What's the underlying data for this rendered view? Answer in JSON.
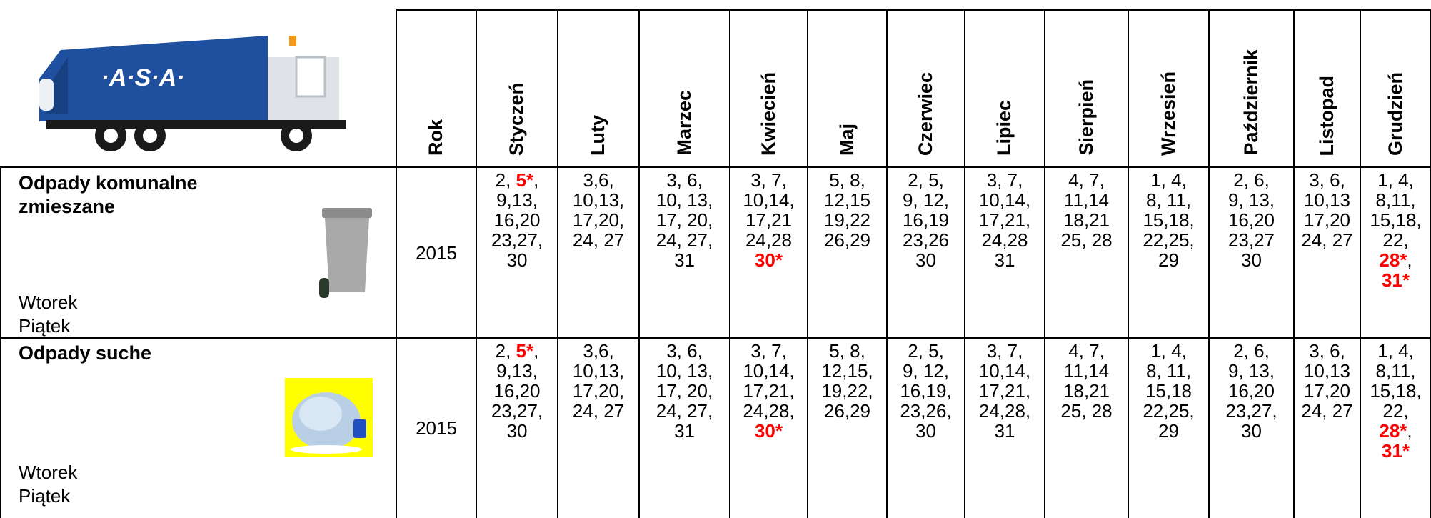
{
  "logo": {
    "text": "·A·S·A·"
  },
  "table": {
    "headers": [
      "Rok",
      "Styczeń",
      "Luty",
      "Marzec",
      "Kwiecień",
      "Maj",
      "Czerwiec",
      "Lipiec",
      "Sierpień",
      "Wrzesień",
      "Październik",
      "Listopad",
      "Grudzień"
    ],
    "rows": [
      {
        "title": "Odpady komunalne zmieszane",
        "days": [
          "Wtorek",
          "Piątek"
        ],
        "year": 2015,
        "months": [
          [
            [
              "2, ",
              {
                "text": "5*",
                "highlight": true
              },
              ","
            ],
            [
              "9,13,"
            ],
            [
              "16,20"
            ],
            [
              "23,27,"
            ],
            [
              "30"
            ]
          ],
          [
            [
              "3,6,"
            ],
            [
              "10,13,"
            ],
            [
              "17,20,"
            ],
            [
              "24, 27"
            ]
          ],
          [
            [
              "3, 6,"
            ],
            [
              "10, 13,"
            ],
            [
              "17, 20,"
            ],
            [
              "24, 27,"
            ],
            [
              "31"
            ]
          ],
          [
            [
              "3, 7,"
            ],
            [
              "10,14,"
            ],
            [
              "17,21"
            ],
            [
              "24,28"
            ],
            [
              {
                "text": "30*",
                "highlight": true
              }
            ]
          ],
          [
            [
              "5, 8,"
            ],
            [
              "12,15"
            ],
            [
              "19,22"
            ],
            [
              "26,29"
            ]
          ],
          [
            [
              "2, 5,"
            ],
            [
              "9, 12,"
            ],
            [
              "16,19"
            ],
            [
              "23,26"
            ],
            [
              "30"
            ]
          ],
          [
            [
              "3, 7,"
            ],
            [
              "10,14,"
            ],
            [
              "17,21,"
            ],
            [
              "24,28"
            ],
            [
              "31"
            ]
          ],
          [
            [
              "4, 7,"
            ],
            [
              "11,14"
            ],
            [
              "18,21"
            ],
            [
              "25, 28"
            ]
          ],
          [
            [
              "1, 4,"
            ],
            [
              "8, 11,"
            ],
            [
              "15,18,"
            ],
            [
              "22,25,"
            ],
            [
              "29"
            ]
          ],
          [
            [
              "2, 6,"
            ],
            [
              "9, 13,"
            ],
            [
              "16,20"
            ],
            [
              "23,27"
            ],
            [
              "30"
            ]
          ],
          [
            [
              "3, 6,"
            ],
            [
              "10,13"
            ],
            [
              "17,20"
            ],
            [
              "24, 27"
            ]
          ],
          [
            [
              "1, 4,"
            ],
            [
              "8,11,"
            ],
            [
              "15,18,"
            ],
            [
              "22,"
            ],
            [
              {
                "text": "28*",
                "highlight": true
              },
              ","
            ],
            [
              {
                "text": "31*",
                "highlight": true
              }
            ]
          ]
        ]
      },
      {
        "title": "Odpady suche",
        "days": [
          "Wtorek",
          "Piątek"
        ],
        "year": 2015,
        "months": [
          [
            [
              "2, ",
              {
                "text": "5*",
                "highlight": true
              },
              ","
            ],
            [
              "9,13,"
            ],
            [
              "16,20"
            ],
            [
              "23,27,"
            ],
            [
              "30"
            ]
          ],
          [
            [
              "3,6,"
            ],
            [
              "10,13,"
            ],
            [
              "17,20,"
            ],
            [
              "24, 27"
            ]
          ],
          [
            [
              "3, 6,"
            ],
            [
              "10, 13,"
            ],
            [
              "17, 20,"
            ],
            [
              "24, 27,"
            ],
            [
              "31"
            ]
          ],
          [
            [
              "3, 7,"
            ],
            [
              "10,14,"
            ],
            [
              "17,21,"
            ],
            [
              "24,28,"
            ],
            [
              {
                "text": "30*",
                "highlight": true
              }
            ]
          ],
          [
            [
              "5, 8,"
            ],
            [
              "12,15,"
            ],
            [
              "19,22,"
            ],
            [
              "26,29"
            ]
          ],
          [
            [
              "2, 5,"
            ],
            [
              "9, 12,"
            ],
            [
              "16,19,"
            ],
            [
              "23,26,"
            ],
            [
              "30"
            ]
          ],
          [
            [
              "3, 7,"
            ],
            [
              "10,14,"
            ],
            [
              "17,21,"
            ],
            [
              "24,28,"
            ],
            [
              "31"
            ]
          ],
          [
            [
              "4, 7,"
            ],
            [
              "11,14"
            ],
            [
              "18,21"
            ],
            [
              "25, 28"
            ]
          ],
          [
            [
              "1, 4,"
            ],
            [
              "8, 11,"
            ],
            [
              "15,18"
            ],
            [
              "22,25,"
            ],
            [
              "29"
            ]
          ],
          [
            [
              "2, 6,"
            ],
            [
              "9, 13,"
            ],
            [
              "16,20"
            ],
            [
              "23,27,"
            ],
            [
              "30"
            ]
          ],
          [
            [
              "3, 6,"
            ],
            [
              "10,13"
            ],
            [
              "17,20"
            ],
            [
              "24, 27"
            ]
          ],
          [
            [
              "1, 4,"
            ],
            [
              "8,11,"
            ],
            [
              "15,18,"
            ],
            [
              "22,"
            ],
            [
              {
                "text": "28*",
                "highlight": true
              },
              ","
            ],
            [
              {
                "text": "31*",
                "highlight": true
              }
            ]
          ]
        ]
      }
    ]
  }
}
